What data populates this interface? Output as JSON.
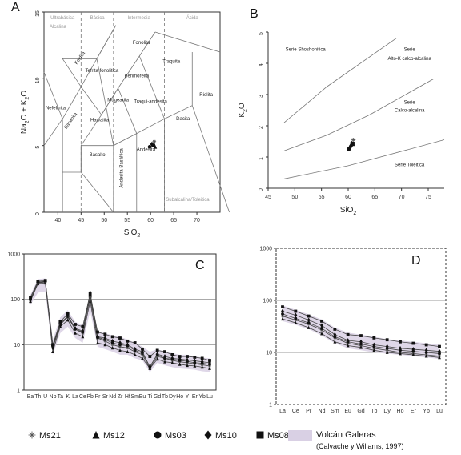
{
  "chart_data": [
    {
      "id": "A",
      "type": "scatter",
      "letter": "A",
      "xlabel": "SiO",
      "xlabel_sub": "2",
      "ylabel": "Na",
      "ylabel_sub1": "2",
      "ylabel_mid": "O + K",
      "ylabel_sub2": "2",
      "ylabel_end": "O",
      "xlim": [
        37,
        75
      ],
      "ylim": [
        0,
        15
      ],
      "xticks": [
        "40",
        "45",
        "50",
        "55",
        "60",
        "65",
        "70"
      ],
      "yticks": [
        "0",
        "5",
        "10",
        "15"
      ],
      "top_labels": [
        "Ultrabásica",
        "Básica",
        "Intermedia",
        "Ácida"
      ],
      "top_subtitle": "Alcalina",
      "bottom_label": "Subalcalina/Toleitica",
      "fields": [
        {
          "name": "Foidita",
          "x": 45,
          "y": 11.5
        },
        {
          "name": "Tefrita fonolitica",
          "x": 49.5,
          "y": 10.5
        },
        {
          "name": "Fonolita",
          "x": 58,
          "y": 12.6
        },
        {
          "name": "Traquita",
          "x": 64.5,
          "y": 11.2
        },
        {
          "name": "Benmoreita",
          "x": 57,
          "y": 10.1
        },
        {
          "name": "Mugearita",
          "x": 53,
          "y": 8.3
        },
        {
          "name": "Traqui-andesita",
          "x": 60,
          "y": 8.2
        },
        {
          "name": "Riolita",
          "x": 72,
          "y": 8.7
        },
        {
          "name": "Nefelinita",
          "x": 39.5,
          "y": 7.7
        },
        {
          "name": "Basanita",
          "x": 43,
          "y": 6.8
        },
        {
          "name": "Hawaiita",
          "x": 49,
          "y": 6.8
        },
        {
          "name": "Dacita",
          "x": 67,
          "y": 6.9
        },
        {
          "name": "Basalto",
          "x": 48.5,
          "y": 4.2
        },
        {
          "name": "Andesita",
          "x": 59,
          "y": 4.6
        },
        {
          "name": "Andesita Basáltica",
          "x": 54,
          "y": 3.3
        }
      ],
      "points": [
        {
          "series": "Ms21",
          "x": 60.8,
          "y": 5.3
        },
        {
          "series": "Ms12",
          "x": 61.0,
          "y": 4.9
        },
        {
          "series": "Ms03",
          "x": 59.8,
          "y": 4.9
        },
        {
          "series": "Ms10",
          "x": 60.3,
          "y": 5.1
        },
        {
          "series": "Ms08",
          "x": 60.6,
          "y": 5.0
        }
      ]
    },
    {
      "id": "B",
      "type": "scatter",
      "letter": "B",
      "xlabel": "SiO",
      "xlabel_sub": "2",
      "ylabel": "K",
      "ylabel_sub": "2",
      "ylabel_end": "O",
      "xlim": [
        45,
        78
      ],
      "ylim": [
        0,
        5
      ],
      "xticks": [
        "45",
        "50",
        "55",
        "60",
        "65",
        "70",
        "75"
      ],
      "yticks": [
        "0",
        "1",
        "2",
        "3",
        "4",
        "5"
      ],
      "fields": [
        {
          "name": "Serie Shoshonitica",
          "x": 52,
          "y": 4.4
        },
        {
          "name": "Serie",
          "x": 71.5,
          "y": 4.4
        },
        {
          "name": "Alto-K calco-alcalina",
          "x": 71.5,
          "y": 4.1
        },
        {
          "name": "Serie",
          "x": 71.5,
          "y": 2.7
        },
        {
          "name": "Calco-alcalina",
          "x": 71.5,
          "y": 2.45
        },
        {
          "name": "Serie Toleitica",
          "x": 71.5,
          "y": 0.7
        }
      ],
      "points": [
        {
          "series": "Ms21",
          "x": 61.0,
          "y": 1.55
        },
        {
          "series": "Ms12",
          "x": 60.7,
          "y": 1.45
        },
        {
          "series": "Ms03",
          "x": 60.1,
          "y": 1.25
        },
        {
          "series": "Ms10",
          "x": 60.5,
          "y": 1.35
        },
        {
          "series": "Ms08",
          "x": 60.8,
          "y": 1.42
        }
      ]
    },
    {
      "id": "C",
      "type": "line",
      "letter": "C",
      "yscale": "log",
      "ylim": [
        1,
        1000
      ],
      "yticks": [
        "1",
        "10",
        "100",
        "1000"
      ],
      "categories": [
        "Ba",
        "Th",
        "U",
        "Nb",
        "Ta",
        "K",
        "La",
        "Ce",
        "Pb",
        "Pr",
        "Sr",
        "Nd",
        "Zr",
        "Hf",
        "Sm",
        "Eu",
        "Ti",
        "Gd",
        "Tb",
        "Dy",
        "Ho",
        "Y",
        "Er",
        "Yb",
        "Lu"
      ],
      "series": [
        {
          "name": "Ms21",
          "values": [
            95,
            230,
            240,
            9,
            28,
            40,
            22,
            18,
            110,
            14,
            12,
            10,
            9,
            8.5,
            7,
            6,
            3,
            5.5,
            5,
            4.5,
            4.2,
            4,
            3.8,
            3.6,
            3.4
          ]
        },
        {
          "name": "Ms12",
          "values": [
            90,
            220,
            230,
            7,
            25,
            35,
            18,
            15,
            90,
            11,
            10,
            8.5,
            7.5,
            7,
            6,
            5,
            3,
            4.8,
            4.2,
            4,
            3.7,
            3.5,
            3.4,
            3.2,
            3
          ]
        },
        {
          "name": "Ms03",
          "values": [
            100,
            240,
            250,
            9.5,
            30,
            42,
            22,
            19,
            115,
            14.5,
            13,
            11,
            10,
            9.5,
            7.5,
            6.5,
            3.3,
            6,
            5,
            4.8,
            4.5,
            4.3,
            4,
            3.9,
            3.7
          ]
        },
        {
          "name": "Ms10",
          "values": [
            98,
            235,
            245,
            8.5,
            27,
            44,
            23,
            20,
            140,
            15,
            14,
            12,
            11,
            10,
            8,
            7,
            3.2,
            6.2,
            5.5,
            5,
            4.8,
            4.6,
            4.4,
            4.2,
            4
          ]
        },
        {
          "name": "Ms08",
          "values": [
            110,
            250,
            260,
            10,
            32,
            48,
            28,
            25,
            130,
            19,
            17,
            15,
            14,
            12,
            11,
            8,
            5.5,
            7.5,
            7,
            6,
            5.5,
            5.5,
            5.3,
            5,
            4.5
          ]
        }
      ],
      "band": {
        "low": [
          75,
          140,
          150,
          6,
          18,
          25,
          14,
          11,
          55,
          9,
          8,
          7,
          6,
          6,
          5,
          4.5,
          2.5,
          4,
          3.5,
          3.2,
          3,
          2.9,
          2.8,
          2.6,
          2.5
        ],
        "high": [
          125,
          280,
          290,
          13,
          40,
          58,
          32,
          27,
          130,
          20,
          18,
          16,
          15,
          13,
          11,
          9,
          7,
          8,
          7,
          6.5,
          6,
          6,
          5.5,
          5.2,
          5
        ]
      }
    },
    {
      "id": "D",
      "type": "line",
      "letter": "D",
      "yscale": "log",
      "ylim": [
        1,
        1000
      ],
      "yticks": [
        "1",
        "10",
        "100",
        "1000"
      ],
      "categories": [
        "La",
        "Ce",
        "Pr",
        "Nd",
        "Sm",
        "Eu",
        "Gd",
        "Tb",
        "Dy",
        "Ho",
        "Er",
        "Yb",
        "Lu"
      ],
      "series": [
        {
          "name": "Ms21",
          "values": [
            50,
            42,
            35,
            27,
            19,
            15,
            13.5,
            12,
            11,
            10,
            9.5,
            9,
            8.5
          ]
        },
        {
          "name": "Ms12",
          "values": [
            44,
            37,
            30,
            23,
            16,
            13.5,
            12.5,
            11,
            10,
            9.5,
            9,
            8.5,
            8
          ]
        },
        {
          "name": "Ms03",
          "values": [
            55,
            45,
            37,
            29,
            20,
            16,
            14.5,
            13,
            12,
            11,
            10.5,
            10,
            9.5
          ]
        },
        {
          "name": "Ms10",
          "values": [
            62,
            52,
            42,
            33,
            22,
            17,
            16,
            14,
            13,
            12,
            11.5,
            11,
            10.5
          ]
        },
        {
          "name": "Ms08",
          "values": [
            75,
            62,
            50,
            40,
            28,
            22,
            21,
            19,
            17.5,
            16,
            15,
            14,
            13
          ]
        }
      ],
      "band": {
        "low": [
          40,
          34,
          28,
          21,
          15,
          12,
          11,
          10,
          9.5,
          9,
          8.5,
          8,
          7.5
        ],
        "high": [
          80,
          66,
          54,
          43,
          30,
          24,
          22,
          20,
          18,
          17,
          16,
          15,
          14
        ]
      }
    }
  ],
  "legend": {
    "items": [
      {
        "name": "Ms21",
        "marker": "star"
      },
      {
        "name": "Ms12",
        "marker": "triangle"
      },
      {
        "name": "Ms03",
        "marker": "circle"
      },
      {
        "name": "Ms10",
        "marker": "diamond"
      },
      {
        "name": "Ms08",
        "marker": "square"
      }
    ],
    "band_label": "Volcán Galeras",
    "band_sub": "(Calvache y Wiliams, 1997)"
  },
  "colors": {
    "band": "#d9d0e4",
    "marker": "#111111",
    "line": "#444444"
  }
}
